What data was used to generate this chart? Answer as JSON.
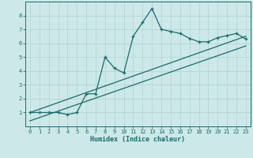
{
  "xlabel": "Humidex (Indice chaleur)",
  "background_color": "#cde8e8",
  "line_color": "#1a6b6b",
  "grid_color": "#b8d8d8",
  "xlim": [
    -0.5,
    23.5
  ],
  "ylim": [
    0,
    9
  ],
  "xticks": [
    0,
    1,
    2,
    3,
    4,
    5,
    6,
    7,
    8,
    9,
    10,
    11,
    12,
    13,
    14,
    15,
    16,
    17,
    18,
    19,
    20,
    21,
    22,
    23
  ],
  "yticks": [
    1,
    2,
    3,
    4,
    5,
    6,
    7,
    8
  ],
  "main_line_x": [
    0,
    1,
    2,
    3,
    4,
    5,
    6,
    7,
    8,
    9,
    10,
    11,
    12,
    13,
    14,
    15,
    16,
    17,
    18,
    19,
    20,
    21,
    22,
    23
  ],
  "main_line_y": [
    1,
    1,
    1,
    1,
    0.85,
    1.0,
    2.35,
    2.35,
    5.0,
    4.2,
    3.85,
    6.5,
    7.5,
    8.5,
    7.0,
    6.85,
    6.7,
    6.35,
    6.1,
    6.1,
    6.4,
    6.55,
    6.7,
    6.3
  ],
  "trend_line1_x": [
    0,
    23
  ],
  "trend_line1_y": [
    1.0,
    6.5
  ],
  "trend_line2_x": [
    0,
    23
  ],
  "trend_line2_y": [
    0.4,
    5.8
  ]
}
